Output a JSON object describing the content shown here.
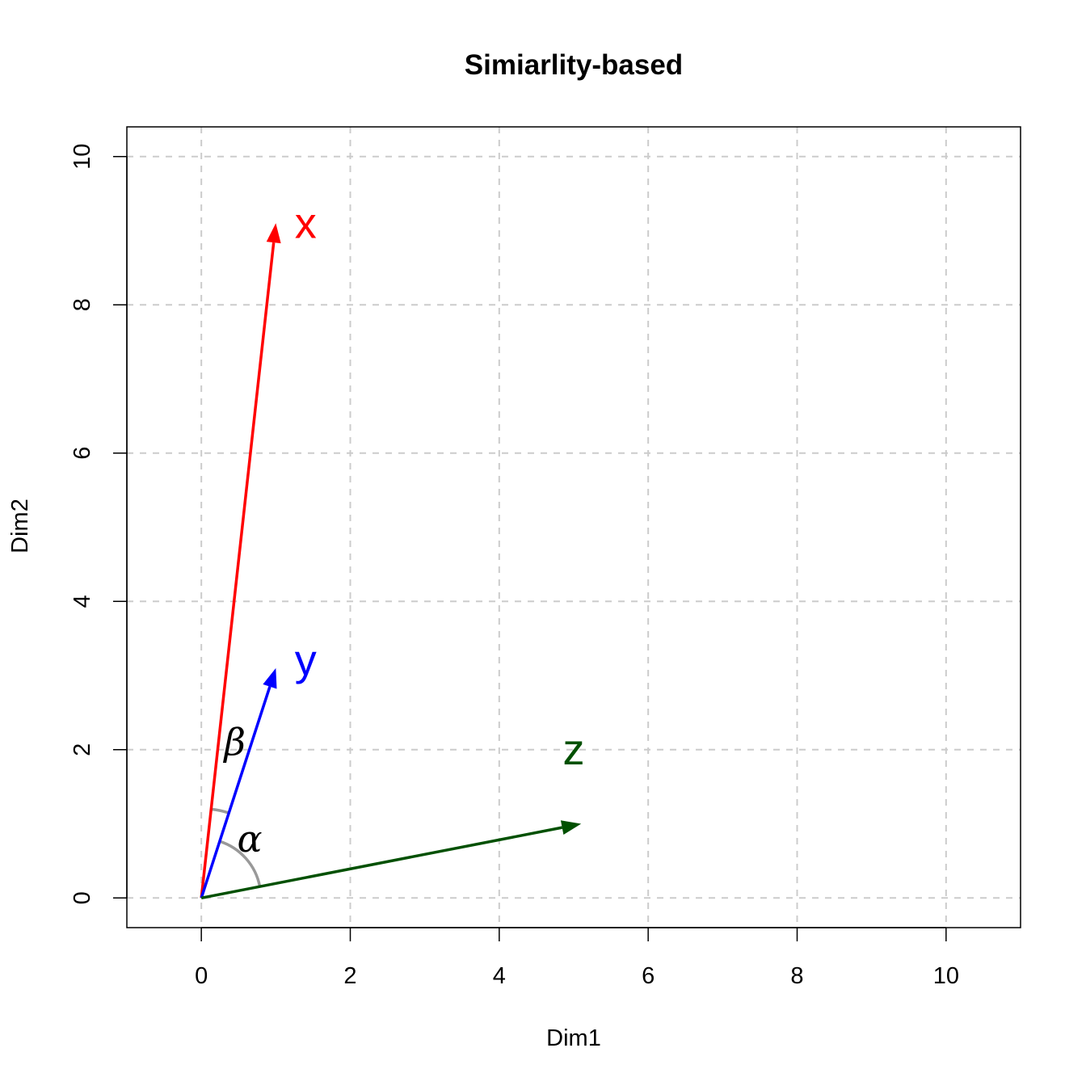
{
  "chart_data": {
    "type": "vector",
    "title": "Simiarlity-based",
    "xlabel": "Dim1",
    "ylabel": "Dim2",
    "xlim": [
      -1,
      11
    ],
    "ylim": [
      -0.4,
      10.4
    ],
    "xticks": [
      0,
      2,
      4,
      6,
      8,
      10
    ],
    "yticks": [
      0,
      2,
      4,
      6,
      8,
      10
    ],
    "grid": true,
    "vectors": [
      {
        "name": "x",
        "from": [
          0,
          0
        ],
        "to": [
          1,
          9.1
        ],
        "color": "#ff0000",
        "label_at": [
          1.4,
          9.1
        ]
      },
      {
        "name": "y",
        "from": [
          0,
          0
        ],
        "to": [
          1,
          3.1
        ],
        "color": "#0000ff",
        "label_at": [
          1.4,
          3.2
        ]
      },
      {
        "name": "z",
        "from": [
          0,
          0
        ],
        "to": [
          5.1,
          1.0
        ],
        "color": "#005000",
        "label_at": [
          5.0,
          2.0
        ]
      }
    ],
    "angles": [
      {
        "symbol": "α",
        "between": [
          "y",
          "z"
        ],
        "radius": 0.8,
        "label_at": [
          0.65,
          0.8
        ],
        "color": "#999999"
      },
      {
        "symbol": "β",
        "between": [
          "x",
          "y"
        ],
        "radius": 1.2,
        "label_at": [
          0.45,
          2.1
        ],
        "color": "#999999"
      }
    ]
  }
}
